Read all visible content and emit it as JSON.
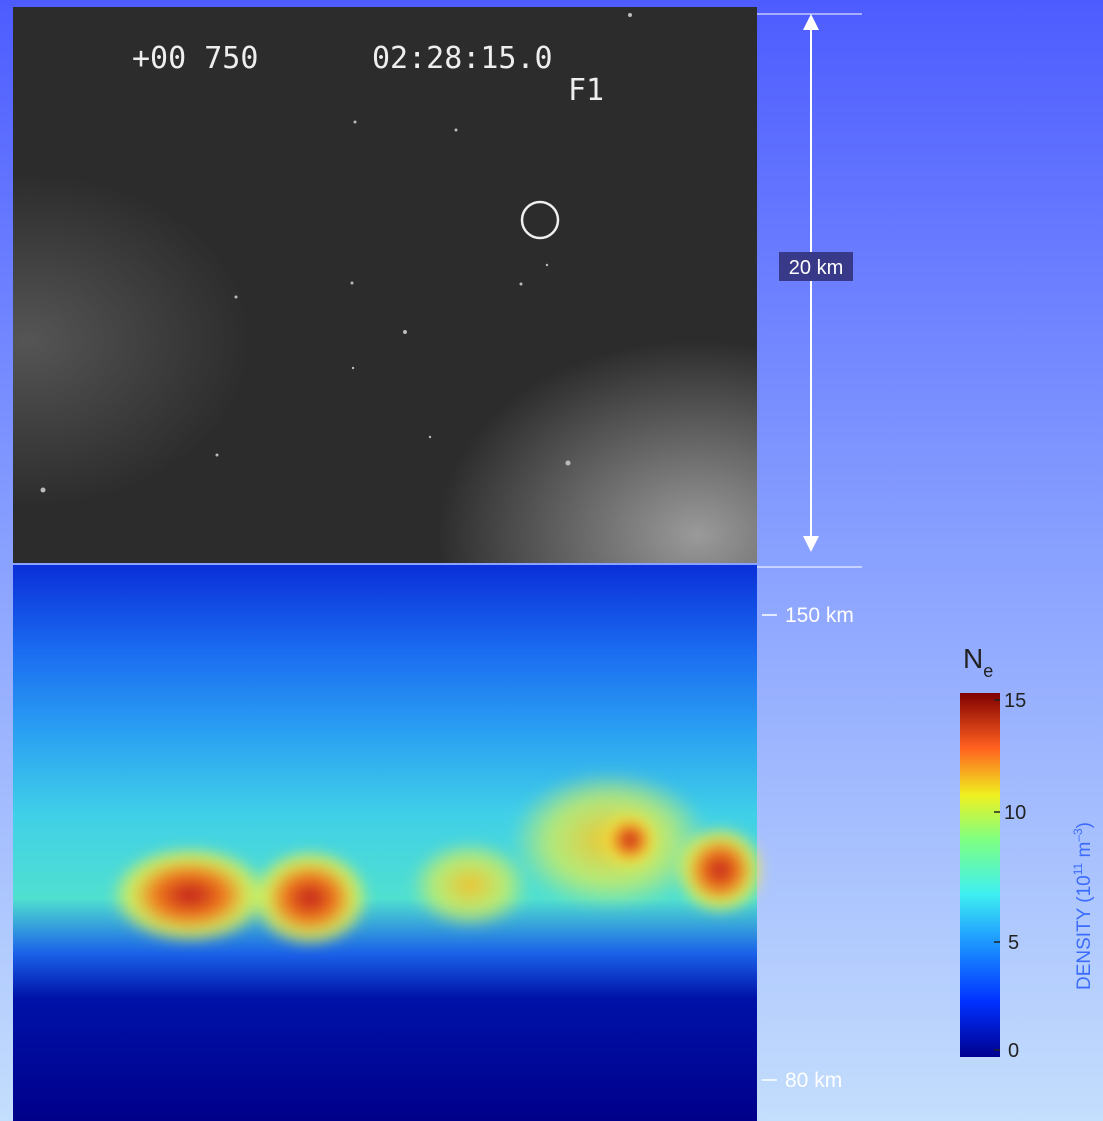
{
  "camera": {
    "counter": "+00 750",
    "time": "02:28:15.0",
    "filter": "F1"
  },
  "scale": {
    "label": "20 km"
  },
  "altitude": {
    "top": "150 km",
    "bottom": "80 km"
  },
  "colorbar": {
    "symbol": "N",
    "subscript": "e",
    "ticks": [
      "15",
      "10",
      "5",
      "0"
    ],
    "axis_label": {
      "text": "DENSITY (10",
      "exponent": "11",
      "unit": " m",
      "unit_exponent": "–3",
      "close": ")"
    }
  }
}
